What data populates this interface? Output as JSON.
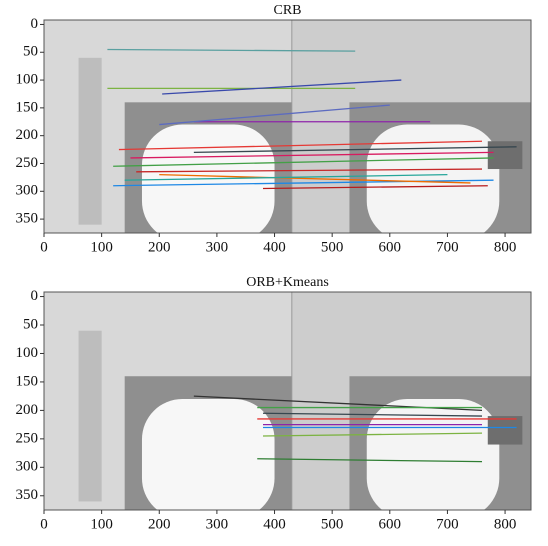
{
  "chart_data": [
    {
      "type": "matches",
      "title": "CRB",
      "xlim": [
        0,
        845
      ],
      "ylim": [
        375,
        -8
      ],
      "xticks": [
        0,
        100,
        200,
        300,
        400,
        500,
        600,
        700,
        800
      ],
      "yticks": [
        0,
        50,
        100,
        150,
        200,
        250,
        300,
        350
      ],
      "matches": [
        [
          110,
          45,
          540,
          48
        ],
        [
          110,
          115,
          540,
          115
        ],
        [
          205,
          125,
          620,
          100
        ],
        [
          260,
          175,
          670,
          175
        ],
        [
          200,
          180,
          600,
          145
        ],
        [
          130,
          225,
          760,
          210
        ],
        [
          150,
          240,
          780,
          230
        ],
        [
          120,
          255,
          780,
          240
        ],
        [
          160,
          265,
          760,
          260
        ],
        [
          120,
          290,
          780,
          280
        ],
        [
          200,
          270,
          740,
          285
        ],
        [
          380,
          295,
          770,
          290
        ],
        [
          140,
          280,
          700,
          270
        ],
        [
          260,
          230,
          820,
          220
        ]
      ],
      "match_colors": [
        "#5aa0a0",
        "#7cb342",
        "#3949ab",
        "#8e24aa",
        "#5c6bc0",
        "#e53935",
        "#d81b60",
        "#43a047",
        "#c62828",
        "#1e88e5",
        "#ef6c00",
        "#b71c1c",
        "#26a69a",
        "#37474f"
      ]
    },
    {
      "type": "matches",
      "title": "ORB+Kmeans",
      "xlim": [
        0,
        845
      ],
      "ylim": [
        375,
        -8
      ],
      "xticks": [
        0,
        100,
        200,
        300,
        400,
        500,
        600,
        700,
        800
      ],
      "yticks": [
        0,
        50,
        100,
        150,
        200,
        250,
        300,
        350
      ],
      "matches": [
        [
          260,
          175,
          760,
          200
        ],
        [
          370,
          195,
          760,
          195
        ],
        [
          370,
          215,
          820,
          215
        ],
        [
          380,
          230,
          820,
          230
        ],
        [
          380,
          225,
          760,
          225
        ],
        [
          380,
          245,
          760,
          240
        ],
        [
          370,
          285,
          760,
          290
        ],
        [
          380,
          205,
          760,
          210
        ]
      ],
      "match_colors": [
        "#333333",
        "#43a047",
        "#e53935",
        "#1e88e5",
        "#8e24aa",
        "#7cb342",
        "#2e7d32",
        "#37474f"
      ]
    }
  ]
}
